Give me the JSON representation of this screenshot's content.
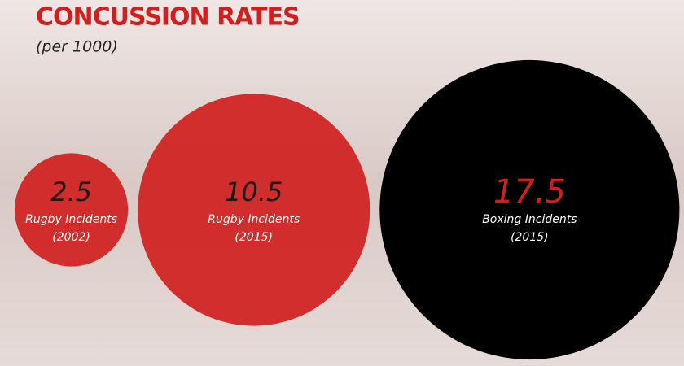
{
  "chart_data": {
    "type": "bubble",
    "title": "CONCUSSION RATES",
    "subtitle": "(per 1000)",
    "categories": [
      "Rugby Incidents",
      "Rugby Incidents",
      "Boxing Incidents"
    ],
    "years": [
      "(2002)",
      "(2015)",
      "(2015)"
    ],
    "values": [
      2.5,
      10.5,
      17.5
    ],
    "colors": [
      "#d01f1f",
      "#d01f1f",
      "#000000"
    ]
  }
}
